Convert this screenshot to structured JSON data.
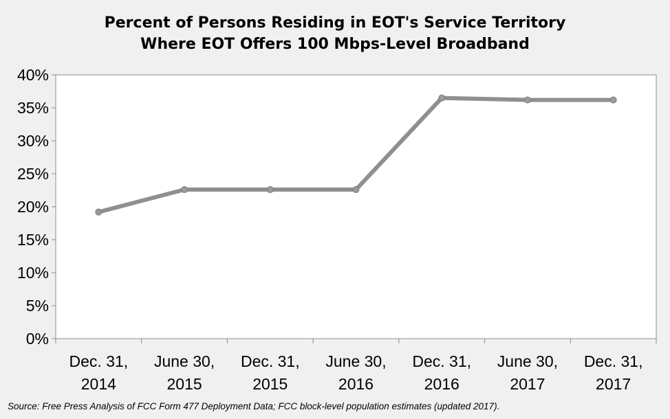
{
  "chart_data": {
    "type": "line",
    "title": [
      "Percent of Persons Residing in EOT's Service Territory",
      "Where EOT Offers 100 Mbps-Level  Broadband"
    ],
    "categories": [
      [
        "Dec. 31,",
        "2014"
      ],
      [
        "June 30,",
        "2015"
      ],
      [
        "Dec. 31,",
        "2015"
      ],
      [
        "June 30,",
        "2016"
      ],
      [
        "Dec. 31,",
        "2016"
      ],
      [
        "June 30,",
        "2017"
      ],
      [
        "Dec. 31,",
        "2017"
      ]
    ],
    "series": [
      {
        "values": [
          19.2,
          22.6,
          22.6,
          22.6,
          36.5,
          36.2,
          36.2
        ],
        "color": "#8f8f8f"
      }
    ],
    "ylim": [
      0,
      40
    ],
    "yticks": [
      "0%",
      "5%",
      "10%",
      "15%",
      "20%",
      "25%",
      "30%",
      "35%",
      "40%"
    ],
    "xlabel": "",
    "ylabel": "",
    "grid": false,
    "legend": "none",
    "plot_background": "#ffffff",
    "page_background": "#f0f0f0"
  },
  "source_note": "Source: Free Press Analysis of FCC Form 477 Deployment Data; FCC block-level population estimates (updated  2017)."
}
